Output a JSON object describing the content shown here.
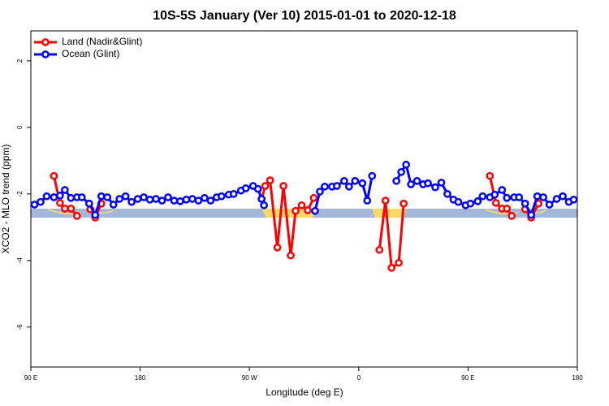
{
  "chart_data": {
    "type": "line",
    "title": "10S-5S January (Ver 10)   2015-01-01 to 2020-12-18",
    "x_label": "Longitude (deg E)",
    "y_label": "XCO2 - MLO trend (ppm)",
    "xlim": [
      90,
      540
    ],
    "xticks": [
      {
        "value": 90,
        "label": "90 E"
      },
      {
        "value": 180,
        "label": "180"
      },
      {
        "value": 270,
        "label": "90 W"
      },
      {
        "value": 360,
        "label": "0"
      },
      {
        "value": 450,
        "label": "90 E"
      },
      {
        "value": 540,
        "label": "180"
      }
    ],
    "ylim": [
      -7.2,
      2.9
    ],
    "yticks": [
      2,
      0,
      -2,
      -4,
      -6
    ],
    "legend": "top-left",
    "series": [
      {
        "name": "Land (Nadir&Glint)",
        "color": "#ff0000",
        "x": [
          109,
          114,
          118,
          123,
          128,
          null,
          139,
          143,
          148,
          null,
          280,
          283,
          287,
          293,
          298,
          304,
          308,
          313,
          318,
          323,
          null,
          377,
          382,
          387,
          393,
          397,
          null,
          468,
          473,
          478,
          482,
          486,
          null,
          497,
          502,
          508
        ],
        "values": [
          -1.46,
          -2.27,
          -2.44,
          -2.44,
          -2.66,
          null,
          -2.46,
          -2.71,
          -2.29,
          null,
          -2.15,
          -1.76,
          -1.59,
          -3.61,
          -1.76,
          -3.85,
          -2.51,
          -2.34,
          -2.49,
          -2.12,
          null,
          -3.68,
          -2.2,
          -4.22,
          -4.07,
          -2.29,
          null,
          -1.46,
          -2.27,
          -2.44,
          -2.44,
          -2.66,
          null,
          -2.46,
          -2.71,
          -2.29
        ]
      },
      {
        "name": "Ocean (Glint)",
        "color": "#0000ff",
        "x": [
          93,
          98,
          103,
          109,
          114,
          118,
          123,
          128,
          132,
          138,
          143,
          148,
          153,
          158,
          163,
          168,
          173,
          178,
          183,
          188,
          193,
          198,
          203,
          208,
          213,
          218,
          223,
          228,
          233,
          238,
          243,
          247,
          253,
          257,
          263,
          267,
          273,
          277,
          280,
          282,
          null,
          324,
          328,
          332,
          338,
          342,
          348,
          352,
          357,
          363,
          367,
          371,
          null,
          391,
          395,
          399,
          403,
          408,
          413,
          417,
          423,
          428,
          433,
          438,
          442,
          448,
          452,
          458,
          462,
          468,
          472,
          478,
          482,
          488,
          492,
          497,
          502,
          507,
          512,
          517,
          523,
          528,
          533,
          537
        ],
        "values": [
          -2.32,
          -2.24,
          -2.07,
          -2.1,
          -2.05,
          -1.88,
          -2.12,
          -2.1,
          -2.1,
          -2.29,
          -2.63,
          -2.07,
          -2.1,
          -2.32,
          -2.15,
          -2.07,
          -2.24,
          -2.15,
          -2.1,
          -2.17,
          -2.15,
          -2.2,
          -2.1,
          -2.2,
          -2.22,
          -2.17,
          -2.15,
          -2.2,
          -2.12,
          -2.2,
          -2.1,
          -2.07,
          -2.02,
          -2.0,
          -1.9,
          -1.83,
          -1.76,
          -1.85,
          -2.15,
          -2.34,
          null,
          -2.51,
          -1.93,
          -1.78,
          -1.78,
          -1.76,
          -1.61,
          -1.78,
          -1.61,
          -1.68,
          -2.2,
          -1.46,
          null,
          -1.61,
          -1.34,
          -1.12,
          -1.71,
          -1.61,
          -1.71,
          -1.68,
          -1.8,
          -1.66,
          -2.0,
          -2.17,
          -2.24,
          -2.34,
          -2.29,
          -2.22,
          -2.07,
          -2.1,
          -2.02,
          -1.88,
          -2.12,
          -2.1,
          -2.1,
          -2.29,
          -2.63,
          -2.07,
          -2.1,
          -2.32,
          -2.15,
          -2.07,
          -2.24,
          -2.17
        ]
      }
    ]
  }
}
